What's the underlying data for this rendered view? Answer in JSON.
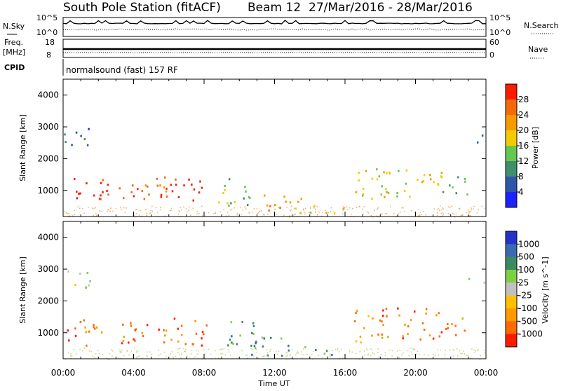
{
  "header": {
    "station": "South Pole Station (fitACF)",
    "beam": "Beam 12",
    "date_range": "27/Mar/2016 - 28/Mar/2016"
  },
  "summary_panels": {
    "nsky": {
      "label": "N.Sky",
      "top": "10^5",
      "bottom": "10^0"
    },
    "nsearch": {
      "label": "N.Search",
      "top": "10^5",
      "bottom": "10^0"
    },
    "freq": {
      "label_line1": "Freq.",
      "label_line2": "[MHz]",
      "top": "18",
      "bottom": "8"
    },
    "nave": {
      "label": "Nave",
      "top": "60",
      "bottom": "0"
    },
    "cpid": {
      "label": "CPID",
      "text": "normalsound (fast) 157 RF"
    }
  },
  "colors": {
    "power": [
      "#1e22ff",
      "#2f56a8",
      "#3f8f6a",
      "#64c850",
      "#f2cc00",
      "#f79a00",
      "#f46a0a",
      "#ff1a00"
    ],
    "velocity": [
      "#2233cc",
      "#3a6ab0",
      "#3a8a60",
      "#7fd040",
      "#c0c0c0",
      "#ffc000",
      "#ff9a00",
      "#ff6a00",
      "#ff1a00"
    ]
  },
  "chart_data": [
    {
      "type": "heatmap",
      "name": "power-panel",
      "xlabel": "",
      "ylabel": "Slant Range [km]",
      "x_ticks": [
        "00:00",
        "04:00",
        "08:00",
        "12:00",
        "16:00",
        "20:00",
        "00:00"
      ],
      "y_ticks": [
        1000,
        2000,
        3000,
        4000
      ],
      "xlim_hours": [
        0,
        24
      ],
      "ylim_km": [
        180,
        4500
      ],
      "colorbar": {
        "label": "Power [dB]",
        "ticks": [
          "4",
          "8",
          "12",
          "16",
          "20",
          "24",
          "28"
        ]
      },
      "regions": [
        {
          "t": [
            0.2,
            2.5
          ],
          "r": [
            600,
            1500
          ],
          "level": 7
        },
        {
          "t": [
            2.5,
            6.0
          ],
          "r": [
            700,
            1400
          ],
          "level": 6
        },
        {
          "t": [
            5.5,
            8.2
          ],
          "r": [
            600,
            1500
          ],
          "level": 7
        },
        {
          "t": [
            8.5,
            11.0
          ],
          "r": [
            550,
            1400
          ],
          "level": 3
        },
        {
          "t": [
            10.5,
            13.5
          ],
          "r": [
            300,
            900
          ],
          "level": 5
        },
        {
          "t": [
            13.5,
            16.0
          ],
          "r": [
            300,
            600
          ],
          "level": 4
        },
        {
          "t": [
            16.5,
            18.5
          ],
          "r": [
            700,
            1800
          ],
          "level": 4
        },
        {
          "t": [
            18.0,
            21.5
          ],
          "r": [
            800,
            1800
          ],
          "level": 4
        },
        {
          "t": [
            21.5,
            23.3
          ],
          "r": [
            900,
            1500
          ],
          "level": 3
        },
        {
          "t": [
            0.0,
            1.5
          ],
          "r": [
            2400,
            3100
          ],
          "level": 1
        },
        {
          "t": [
            23.0,
            24.0
          ],
          "r": [
            2500,
            2800
          ],
          "level": 1
        }
      ]
    },
    {
      "type": "heatmap",
      "name": "velocity-panel",
      "xlabel": "Time UT",
      "ylabel": "Slant Range [km]",
      "x_ticks": [
        "00:00",
        "04:00",
        "08:00",
        "12:00",
        "16:00",
        "20:00",
        "00:00"
      ],
      "y_ticks": [
        1000,
        2000,
        3000,
        4000
      ],
      "xlim_hours": [
        0,
        24
      ],
      "ylim_km": [
        180,
        4500
      ],
      "colorbar": {
        "label": "Velocity [m s^-1]",
        "ticks": [
          "1000",
          "500",
          "100",
          "25",
          "-25",
          "-100",
          "-500",
          "-1000"
        ]
      },
      "regions": [
        {
          "t": [
            0.2,
            2.5
          ],
          "r": [
            600,
            1500
          ],
          "level": 7
        },
        {
          "t": [
            2.5,
            6.0
          ],
          "r": [
            700,
            1400
          ],
          "level": 7
        },
        {
          "t": [
            5.5,
            8.2
          ],
          "r": [
            600,
            1500
          ],
          "level": 7
        },
        {
          "t": [
            8.5,
            11.0
          ],
          "r": [
            550,
            1400
          ],
          "level": 2
        },
        {
          "t": [
            10.5,
            13.5
          ],
          "r": [
            300,
            900
          ],
          "level": 2
        },
        {
          "t": [
            13.5,
            16.0
          ],
          "r": [
            300,
            600
          ],
          "level": 2
        },
        {
          "t": [
            16.5,
            18.5
          ],
          "r": [
            700,
            1800
          ],
          "level": 6
        },
        {
          "t": [
            18.0,
            21.5
          ],
          "r": [
            800,
            1800
          ],
          "level": 7
        },
        {
          "t": [
            21.5,
            23.3
          ],
          "r": [
            900,
            1500
          ],
          "level": 7
        },
        {
          "t": [
            0.0,
            1.5
          ],
          "r": [
            2400,
            3100
          ],
          "level": 4
        },
        {
          "t": [
            23.0,
            24.0
          ],
          "r": [
            2500,
            2800
          ],
          "level": 4
        }
      ]
    }
  ]
}
